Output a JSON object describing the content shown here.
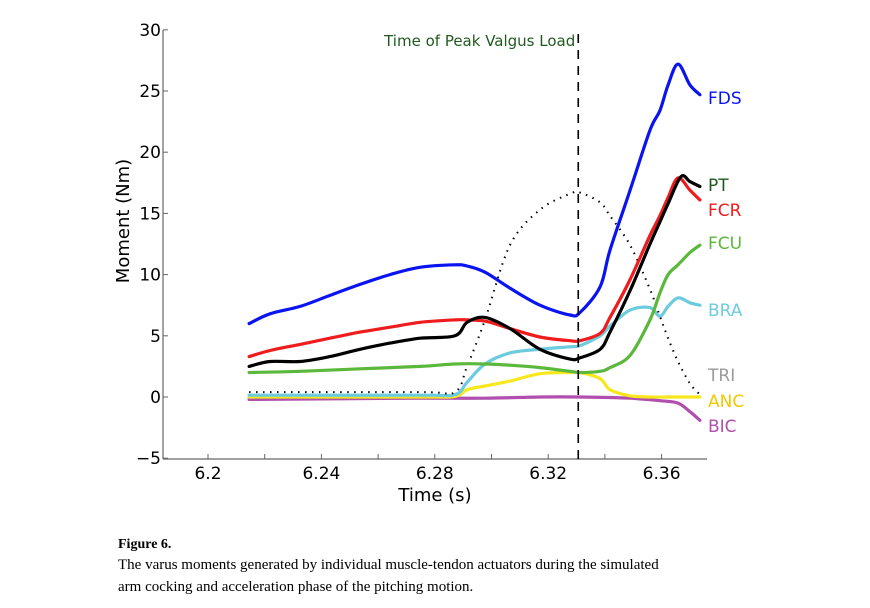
{
  "chart_data": {
    "type": "line",
    "title": "",
    "xlabel": "Time (s)",
    "ylabel": "Moment (Nm)",
    "xlim": [
      6.185,
      6.379
    ],
    "ylim": [
      -5,
      30
    ],
    "xticks": [
      6.2,
      6.22,
      6.24,
      6.26,
      6.28,
      6.3,
      6.32,
      6.34,
      6.36
    ],
    "xtick_labels": [
      "6.2",
      "",
      "6.24",
      "",
      "6.28",
      "",
      "6.32",
      "",
      "6.36"
    ],
    "yticks": [
      -5,
      0,
      5,
      10,
      15,
      20,
      25,
      30
    ],
    "ytick_labels": [
      "−5",
      "0",
      "5",
      "10",
      "15",
      "20",
      "25",
      "30"
    ],
    "grid": false,
    "annotations": [
      {
        "text": "Time of Peak Valgus Load",
        "x": 6.3306,
        "style": "dashed-vertical-line",
        "color": "#1f5a1f"
      }
    ],
    "series": [
      {
        "name": "FDS",
        "color": "#0a14f0",
        "style": "solid",
        "x": [
          6.2145,
          6.2219,
          6.2325,
          6.243,
          6.2536,
          6.2642,
          6.2748,
          6.2871,
          6.2914,
          6.2977,
          6.3065,
          6.3171,
          6.3277,
          6.3312,
          6.3383,
          6.3418,
          6.3489,
          6.3559,
          6.3594,
          6.3623,
          6.3658,
          6.37,
          6.3735
        ],
        "values": [
          6.0,
          6.8,
          7.4,
          8.3,
          9.2,
          10.0,
          10.6,
          10.8,
          10.7,
          10.2,
          8.9,
          7.5,
          6.7,
          6.9,
          9.0,
          12.0,
          16.9,
          21.8,
          23.4,
          25.5,
          27.2,
          25.5,
          24.7
        ]
      },
      {
        "name": "PT",
        "color": "#000000",
        "style": "solid",
        "x": [
          6.2145,
          6.2219,
          6.2325,
          6.243,
          6.2536,
          6.2642,
          6.2748,
          6.2871,
          6.2914,
          6.2977,
          6.3065,
          6.3171,
          6.3277,
          6.3312,
          6.3383,
          6.3418,
          6.3489,
          6.3559,
          6.3594,
          6.3623,
          6.3668,
          6.37,
          6.3735
        ],
        "values": [
          2.5,
          2.9,
          2.9,
          3.3,
          3.9,
          4.4,
          4.8,
          5.0,
          6.1,
          6.5,
          5.6,
          3.9,
          3.1,
          3.2,
          3.9,
          5.3,
          8.7,
          12.5,
          14.3,
          15.8,
          18.0,
          17.6,
          17.2
        ]
      },
      {
        "name": "FCR",
        "color": "#ee1c1c",
        "style": "solid",
        "x": [
          6.2145,
          6.2219,
          6.2325,
          6.243,
          6.2536,
          6.2642,
          6.2748,
          6.2871,
          6.2914,
          6.2977,
          6.3065,
          6.3171,
          6.3277,
          6.3312,
          6.3383,
          6.3418,
          6.3489,
          6.3559,
          6.3594,
          6.3623,
          6.3658,
          6.37,
          6.3735
        ],
        "values": [
          3.3,
          3.8,
          4.3,
          4.8,
          5.3,
          5.7,
          6.1,
          6.3,
          6.3,
          6.2,
          5.6,
          4.9,
          4.6,
          4.6,
          5.2,
          6.5,
          9.6,
          13.2,
          14.8,
          16.3,
          17.9,
          16.9,
          16.1
        ]
      },
      {
        "name": "FCU",
        "color": "#5cb83c",
        "style": "solid",
        "x": [
          6.2145,
          6.2325,
          6.2536,
          6.2748,
          6.2871,
          6.2977,
          6.3065,
          6.3171,
          6.3277,
          6.3312,
          6.3383,
          6.3418,
          6.3489,
          6.3559,
          6.3594,
          6.3623,
          6.3658,
          6.37,
          6.3735
        ],
        "values": [
          2.0,
          2.1,
          2.3,
          2.5,
          2.7,
          2.7,
          2.6,
          2.4,
          2.1,
          2.0,
          2.1,
          2.4,
          3.4,
          6.3,
          8.5,
          10.0,
          10.8,
          11.8,
          12.4
        ]
      },
      {
        "name": "BRA",
        "color": "#6ccbdd",
        "style": "solid",
        "x": [
          6.2145,
          6.2748,
          6.2871,
          6.2914,
          6.2977,
          6.3065,
          6.3171,
          6.3277,
          6.3312,
          6.3383,
          6.3418,
          6.3489,
          6.3559,
          6.3594,
          6.3623,
          6.3658,
          6.37,
          6.3735
        ],
        "values": [
          0.15,
          0.15,
          0.2,
          1.2,
          2.7,
          3.6,
          3.9,
          4.1,
          4.2,
          5.0,
          5.8,
          7.1,
          7.3,
          6.6,
          7.4,
          8.1,
          7.7,
          7.5
        ]
      },
      {
        "name": "TRI",
        "color": "#000000",
        "label_color": "#9a9a9a",
        "style": "dotted",
        "x": [
          6.2145,
          6.2748,
          6.2871,
          6.2914,
          6.2977,
          6.3065,
          6.3171,
          6.3277,
          6.3312,
          6.3383,
          6.3418,
          6.3489,
          6.3559,
          6.3594,
          6.3623,
          6.3658,
          6.37,
          6.3735
        ],
        "values": [
          0.4,
          0.4,
          0.4,
          2.5,
          6.3,
          12.4,
          15.3,
          16.6,
          16.7,
          15.9,
          14.8,
          12.4,
          8.8,
          6.6,
          4.8,
          2.9,
          1.1,
          0.2
        ]
      },
      {
        "name": "ANC",
        "color": "#f7e71c",
        "label_color": "#f0c800",
        "style": "solid",
        "x": [
          6.2145,
          6.2748,
          6.2871,
          6.2914,
          6.2977,
          6.3065,
          6.3171,
          6.3277,
          6.3312,
          6.3383,
          6.3418,
          6.3489,
          6.3559,
          6.3623,
          6.37,
          6.3735
        ],
        "values": [
          0.0,
          0.0,
          0.05,
          0.6,
          0.9,
          1.3,
          1.9,
          2.0,
          2.0,
          1.5,
          0.6,
          0.1,
          0.0,
          0.0,
          0.0,
          0.0
        ]
      },
      {
        "name": "BIC",
        "color": "#b04fae",
        "style": "solid",
        "x": [
          6.2145,
          6.2748,
          6.2977,
          6.3171,
          6.3312,
          6.3489,
          6.3594,
          6.3658,
          6.37,
          6.3735
        ],
        "values": [
          -0.2,
          -0.1,
          -0.1,
          0.0,
          0.0,
          -0.1,
          -0.3,
          -0.5,
          -1.2,
          -1.9
        ]
      }
    ]
  },
  "figure": {
    "label": "Figure 6.",
    "caption_line1": "The varus moments generated by individual muscle-tendon actuators during the simulated",
    "caption_line2": "arm cocking and acceleration phase of the pitching motion."
  }
}
